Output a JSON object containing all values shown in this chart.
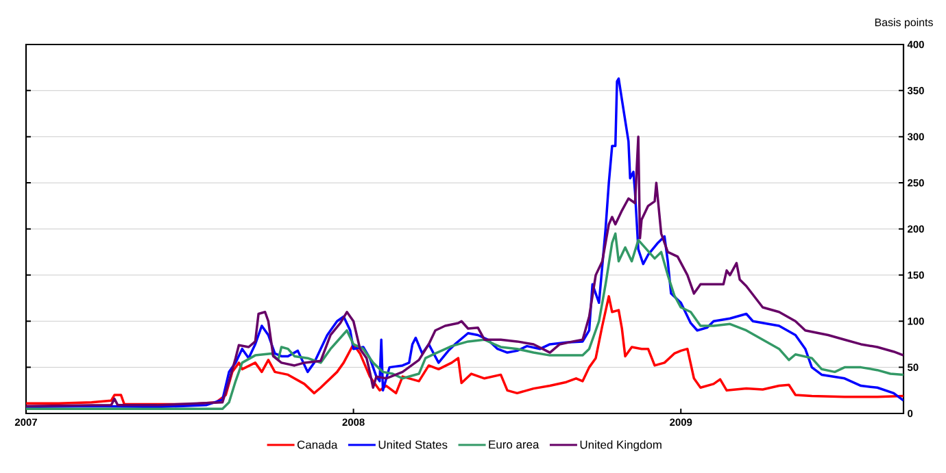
{
  "chart_data": {
    "type": "line",
    "ylabel": "Basis points",
    "xlim": [
      2007,
      2009.68
    ],
    "xticks": [
      2007,
      2008,
      2009
    ],
    "ylim": [
      0,
      400
    ],
    "yticks": [
      0,
      50,
      100,
      150,
      200,
      250,
      300,
      350,
      400
    ],
    "grid": "y",
    "legend": "bottom",
    "marker": "none",
    "line_style": "solid",
    "series": [
      {
        "name": "Canada",
        "color": "#ff0000",
        "x": [
          2007.0,
          2007.1,
          2007.2,
          2007.26,
          2007.27,
          2007.29,
          2007.3,
          2007.4,
          2007.5,
          2007.58,
          2007.61,
          2007.63,
          2007.65,
          2007.66,
          2007.7,
          2007.72,
          2007.74,
          2007.76,
          2007.8,
          2007.85,
          2007.88,
          2007.9,
          2007.95,
          2007.97,
          2008.0,
          2008.02,
          2008.05,
          2008.08,
          2008.1,
          2008.13,
          2008.15,
          2008.2,
          2008.23,
          2008.26,
          2008.3,
          2008.32,
          2008.33,
          2008.36,
          2008.4,
          2008.45,
          2008.47,
          2008.5,
          2008.55,
          2008.6,
          2008.65,
          2008.68,
          2008.7,
          2008.72,
          2008.74,
          2008.76,
          2008.78,
          2008.79,
          2008.81,
          2008.82,
          2008.83,
          2008.85,
          2008.88,
          2008.9,
          2008.92,
          2008.95,
          2008.98,
          2009.0,
          2009.02,
          2009.04,
          2009.06,
          2009.1,
          2009.12,
          2009.14,
          2009.2,
          2009.25,
          2009.3,
          2009.33,
          2009.35,
          2009.4,
          2009.5,
          2009.6,
          2009.68
        ],
        "values": [
          11,
          11,
          12,
          14,
          20,
          20,
          10,
          10,
          10,
          12,
          20,
          45,
          55,
          48,
          55,
          45,
          58,
          45,
          42,
          32,
          22,
          28,
          45,
          55,
          75,
          65,
          40,
          25,
          30,
          22,
          40,
          35,
          52,
          48,
          55,
          60,
          33,
          43,
          38,
          42,
          25,
          22,
          27,
          30,
          34,
          38,
          35,
          50,
          60,
          95,
          127,
          110,
          112,
          92,
          62,
          72,
          70,
          70,
          52,
          55,
          65,
          68,
          70,
          38,
          28,
          32,
          37,
          25,
          27,
          26,
          30,
          31,
          20,
          19,
          18,
          18,
          19
        ]
      },
      {
        "name": "United States",
        "color": "#0000ff",
        "x": [
          2007.0,
          2007.2,
          2007.4,
          2007.55,
          2007.6,
          2007.62,
          2007.64,
          2007.66,
          2007.68,
          2007.7,
          2007.72,
          2007.74,
          2007.76,
          2007.78,
          2007.8,
          2007.83,
          2007.86,
          2007.88,
          2007.92,
          2007.95,
          2007.97,
          2007.99,
          2008.0,
          2008.03,
          2008.05,
          2008.07,
          2008.08,
          2008.085,
          2008.09,
          2008.11,
          2008.15,
          2008.17,
          2008.18,
          2008.19,
          2008.21,
          2008.23,
          2008.26,
          2008.29,
          2008.31,
          2008.35,
          2008.38,
          2008.41,
          2008.44,
          2008.47,
          2008.5,
          2008.53,
          2008.57,
          2008.6,
          2008.65,
          2008.7,
          2008.72,
          2008.73,
          2008.75,
          2008.77,
          2008.78,
          2008.79,
          2008.8,
          2008.805,
          2008.81,
          2008.82,
          2008.84,
          2008.845,
          2008.855,
          2008.86,
          2008.87,
          2008.885,
          2008.9,
          2008.93,
          2008.95,
          2008.96,
          2008.97,
          2009.0,
          2009.03,
          2009.05,
          2009.08,
          2009.1,
          2009.15,
          2009.2,
          2009.22,
          2009.3,
          2009.35,
          2009.38,
          2009.4,
          2009.43,
          2009.5,
          2009.55,
          2009.6,
          2009.65,
          2009.68
        ],
        "values": [
          7,
          8,
          7,
          9,
          15,
          45,
          55,
          70,
          60,
          75,
          95,
          85,
          65,
          62,
          62,
          68,
          45,
          55,
          85,
          100,
          105,
          90,
          70,
          72,
          60,
          40,
          35,
          80,
          25,
          50,
          52,
          55,
          75,
          82,
          65,
          75,
          55,
          68,
          75,
          87,
          85,
          80,
          70,
          66,
          68,
          73,
          70,
          75,
          77,
          78,
          90,
          140,
          120,
          200,
          250,
          290,
          290,
          360,
          363,
          340,
          295,
          255,
          262,
          240,
          178,
          162,
          172,
          185,
          192,
          165,
          130,
          120,
          98,
          90,
          93,
          100,
          103,
          108,
          100,
          95,
          85,
          70,
          50,
          42,
          38,
          30,
          28,
          22,
          14
        ]
      },
      {
        "name": "Euro area",
        "color": "#339966",
        "x": [
          2007.0,
          2007.3,
          2007.6,
          2007.62,
          2007.64,
          2007.66,
          2007.7,
          2007.75,
          2007.77,
          2007.78,
          2007.8,
          2007.82,
          2007.86,
          2007.9,
          2007.93,
          2007.96,
          2007.98,
          2008.0,
          2008.03,
          2008.06,
          2008.09,
          2008.12,
          2008.15,
          2008.2,
          2008.22,
          2008.25,
          2008.3,
          2008.35,
          2008.4,
          2008.43,
          2008.45,
          2008.5,
          2008.55,
          2008.6,
          2008.7,
          2008.72,
          2008.75,
          2008.77,
          2008.79,
          2008.8,
          2008.81,
          2008.83,
          2008.85,
          2008.87,
          2008.89,
          2008.92,
          2008.94,
          2008.96,
          2008.98,
          2009.0,
          2009.03,
          2009.06,
          2009.1,
          2009.15,
          2009.2,
          2009.25,
          2009.3,
          2009.33,
          2009.35,
          2009.4,
          2009.43,
          2009.47,
          2009.5,
          2009.55,
          2009.6,
          2009.64,
          2009.68
        ],
        "values": [
          5,
          5,
          5,
          12,
          35,
          55,
          63,
          65,
          58,
          72,
          70,
          62,
          60,
          55,
          70,
          82,
          90,
          75,
          70,
          55,
          45,
          43,
          38,
          43,
          60,
          65,
          73,
          78,
          80,
          75,
          72,
          70,
          66,
          63,
          63,
          70,
          100,
          140,
          185,
          195,
          165,
          180,
          165,
          188,
          180,
          168,
          175,
          150,
          128,
          115,
          110,
          95,
          95,
          97,
          90,
          80,
          70,
          58,
          64,
          60,
          48,
          45,
          50,
          50,
          47,
          43,
          42
        ]
      },
      {
        "name": "United Kingdom",
        "color": "#660066",
        "x": [
          2007.0,
          2007.2,
          2007.26,
          2007.27,
          2007.28,
          2007.4,
          2007.6,
          2007.62,
          2007.64,
          2007.65,
          2007.68,
          2007.7,
          2007.71,
          2007.73,
          2007.74,
          2007.755,
          2007.78,
          2007.82,
          2007.85,
          2007.9,
          2007.93,
          2007.96,
          2007.98,
          2008.0,
          2008.02,
          2008.04,
          2008.05,
          2008.06,
          2008.07,
          2008.1,
          2008.15,
          2008.2,
          2008.23,
          2008.25,
          2008.28,
          2008.32,
          2008.33,
          2008.35,
          2008.38,
          2008.4,
          2008.45,
          2008.5,
          2008.55,
          2008.6,
          2008.63,
          2008.67,
          2008.7,
          2008.72,
          2008.74,
          2008.76,
          2008.78,
          2008.79,
          2008.8,
          2008.82,
          2008.84,
          2008.86,
          2008.87,
          2008.875,
          2008.88,
          2008.9,
          2008.92,
          2008.925,
          2008.94,
          2008.96,
          2008.99,
          2009.02,
          2009.04,
          2009.06,
          2009.1,
          2009.13,
          2009.14,
          2009.15,
          2009.17,
          2009.18,
          2009.2,
          2009.25,
          2009.3,
          2009.35,
          2009.38,
          2009.45,
          2009.5,
          2009.55,
          2009.6,
          2009.65,
          2009.68
        ],
        "values": [
          8,
          9,
          9,
          16,
          9,
          9,
          12,
          35,
          60,
          74,
          72,
          78,
          108,
          110,
          100,
          62,
          55,
          52,
          55,
          57,
          85,
          98,
          110,
          100,
          70,
          60,
          45,
          28,
          40,
          38,
          45,
          58,
          75,
          90,
          95,
          98,
          100,
          92,
          93,
          80,
          80,
          78,
          75,
          66,
          75,
          78,
          80,
          105,
          150,
          165,
          205,
          213,
          205,
          220,
          233,
          228,
          300,
          190,
          210,
          225,
          230,
          250,
          195,
          175,
          170,
          150,
          130,
          140,
          140,
          140,
          155,
          150,
          163,
          145,
          138,
          115,
          110,
          100,
          90,
          85,
          80,
          75,
          72,
          67,
          63
        ]
      }
    ]
  }
}
